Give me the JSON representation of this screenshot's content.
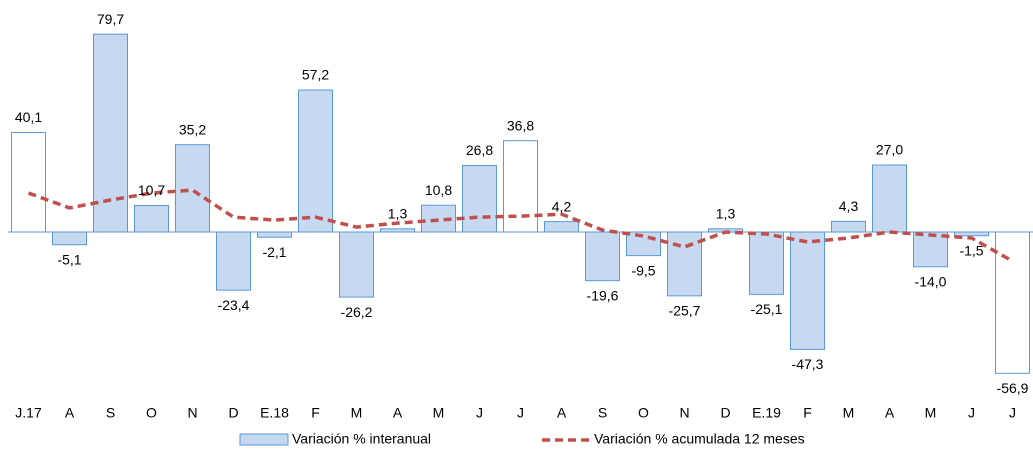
{
  "chart_data": {
    "type": "bar",
    "categories": [
      "J.17",
      "A",
      "S",
      "O",
      "N",
      "D",
      "E.18",
      "F",
      "M",
      "A",
      "M",
      "J",
      "J",
      "A",
      "S",
      "O",
      "N",
      "D",
      "E.19",
      "F",
      "M",
      "A",
      "M",
      "J",
      "J"
    ],
    "ylim": [
      -60,
      85
    ],
    "series": [
      {
        "name": "Variación % interanual",
        "color": "#c6d9f1",
        "stroke": "#5b9bd5",
        "values": [
          40.1,
          -5.1,
          79.7,
          10.7,
          35.2,
          -23.4,
          -2.1,
          57.2,
          -26.2,
          1.3,
          10.8,
          26.8,
          36.8,
          4.2,
          -19.6,
          -9.5,
          -25.7,
          1.3,
          -25.1,
          -47.3,
          4.3,
          27.0,
          -14.0,
          -1.5,
          -56.9
        ],
        "value_labels": [
          "40,1",
          "-5,1",
          "79,7",
          "10,7",
          "35,2",
          "-23,4",
          "-2,1",
          "57,2",
          "-26,2",
          "1,3",
          "10,8",
          "26,8",
          "36,8",
          "4,2",
          "-19,6",
          "-9,5",
          "-25,7",
          "1,3",
          "-25,1",
          "-47,3",
          "4,3",
          "27,0",
          "-14,0",
          "-1,5",
          "-56,9"
        ],
        "fills": [
          "#ffffff",
          "#c6d9f1",
          "#c6d9f1",
          "#c6d9f1",
          "#c6d9f1",
          "#c6d9f1",
          "#c6d9f1",
          "#c6d9f1",
          "#c6d9f1",
          "#c6d9f1",
          "#c6d9f1",
          "#c6d9f1",
          "#ffffff",
          "#c6d9f1",
          "#c6d9f1",
          "#c6d9f1",
          "#c6d9f1",
          "#c6d9f1",
          "#c6d9f1",
          "#c6d9f1",
          "#c6d9f1",
          "#c6d9f1",
          "#c6d9f1",
          "#c6d9f1",
          "#ffffff"
        ]
      },
      {
        "name": "Variación % acumulada 12 meses",
        "type": "line",
        "color": "#c0504d",
        "values": [
          15.7,
          9.7,
          12.9,
          15.7,
          16.9,
          6.0,
          4.8,
          6.0,
          2.0,
          3.6,
          4.8,
          6.0,
          6.4,
          7.2,
          0.8,
          -1.6,
          -6.0,
          0.0,
          -0.8,
          -4.0,
          -2.4,
          0.0,
          -1.2,
          -2.4,
          -11.7
        ]
      }
    ]
  }
}
